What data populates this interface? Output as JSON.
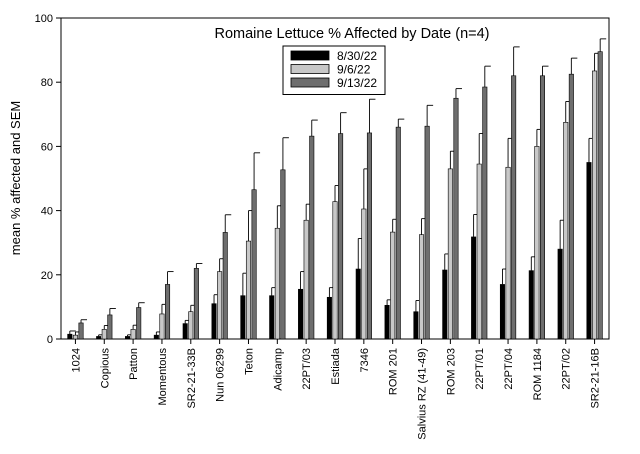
{
  "chart_data": {
    "type": "bar",
    "title": "Romaine Lettuce % Affected by Date (n=4)",
    "xlabel": "",
    "ylabel": "mean % affected and SEM",
    "ylim": [
      0,
      100
    ],
    "yticks": [
      0,
      20,
      40,
      60,
      80,
      100
    ],
    "legend_position": "top-center",
    "categories": [
      "1024",
      "Copious",
      "Patton",
      "Momentous",
      "SR2-21-33B",
      "Nun 06299",
      "Teton",
      "Adicamp",
      "22PT/03",
      "Estiada",
      "7346",
      "ROM 201",
      "Salvius RZ (41-49)",
      "ROM 203",
      "22PT/01",
      "22PT/04",
      "ROM 1184",
      "22PT/02",
      "SR2-21-16B"
    ],
    "series": [
      {
        "name": "8/30/22",
        "color": "#000000",
        "values": [
          1.5,
          0.8,
          0.8,
          1.2,
          4.8,
          11.0,
          13.5,
          13.5,
          15.5,
          13.0,
          21.8,
          10.5,
          8.5,
          21.5,
          31.8,
          17.0,
          21.3,
          28.0,
          55.0
        ],
        "errors": [
          1.0,
          0.5,
          0.5,
          1.0,
          1.0,
          2.8,
          7.0,
          2.5,
          5.5,
          3.0,
          9.5,
          1.7,
          3.5,
          5.0,
          7.0,
          4.8,
          4.3,
          9.0,
          7.5
        ]
      },
      {
        "name": "9/6/22",
        "color": "#c8c8c8",
        "values": [
          1.2,
          3.0,
          3.0,
          7.8,
          8.5,
          21.0,
          30.5,
          34.5,
          37.0,
          42.8,
          40.5,
          33.3,
          32.5,
          53.0,
          54.5,
          53.5,
          60.0,
          67.5,
          83.5
        ],
        "errors": [
          1.0,
          1.2,
          1.3,
          3.0,
          2.0,
          4.0,
          9.5,
          7.0,
          5.0,
          5.0,
          12.5,
          4.0,
          5.0,
          5.5,
          9.5,
          9.0,
          5.3,
          6.5,
          5.5
        ]
      },
      {
        "name": "9/13/22",
        "color": "#6e6e6e",
        "values": [
          5.0,
          7.5,
          9.8,
          17.0,
          22.0,
          33.2,
          46.5,
          52.7,
          63.2,
          64.0,
          64.2,
          66.0,
          66.3,
          75.0,
          78.5,
          82.0,
          82.0,
          82.5,
          89.5
        ],
        "errors": [
          1.0,
          2.0,
          1.5,
          4.0,
          1.5,
          5.5,
          11.5,
          10.0,
          5.0,
          6.5,
          10.5,
          2.5,
          6.5,
          3.0,
          6.5,
          9.0,
          3.0,
          5.0,
          4.0
        ]
      }
    ]
  }
}
